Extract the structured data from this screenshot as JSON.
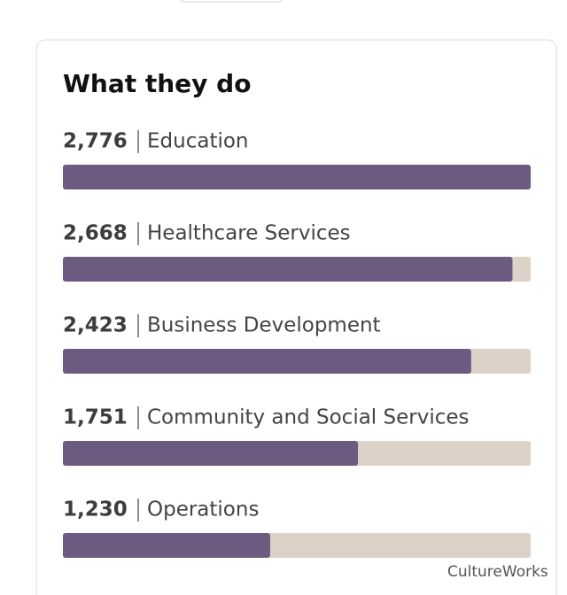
{
  "chart_data": {
    "type": "bar",
    "orientation": "horizontal",
    "title": "What they do",
    "categories": [
      "Education",
      "Healthcare Services",
      "Business Development",
      "Community and Social Services",
      "Operations"
    ],
    "values": [
      2776,
      2668,
      2423,
      1751,
      1230
    ],
    "value_labels": [
      "2,776",
      "2,668",
      "2,423",
      "1,751",
      "1,230"
    ],
    "xlim": [
      0,
      2776
    ],
    "color": "#6c5a81",
    "track_color": "#dcd2c8",
    "watermark": "CultureWorks"
  }
}
